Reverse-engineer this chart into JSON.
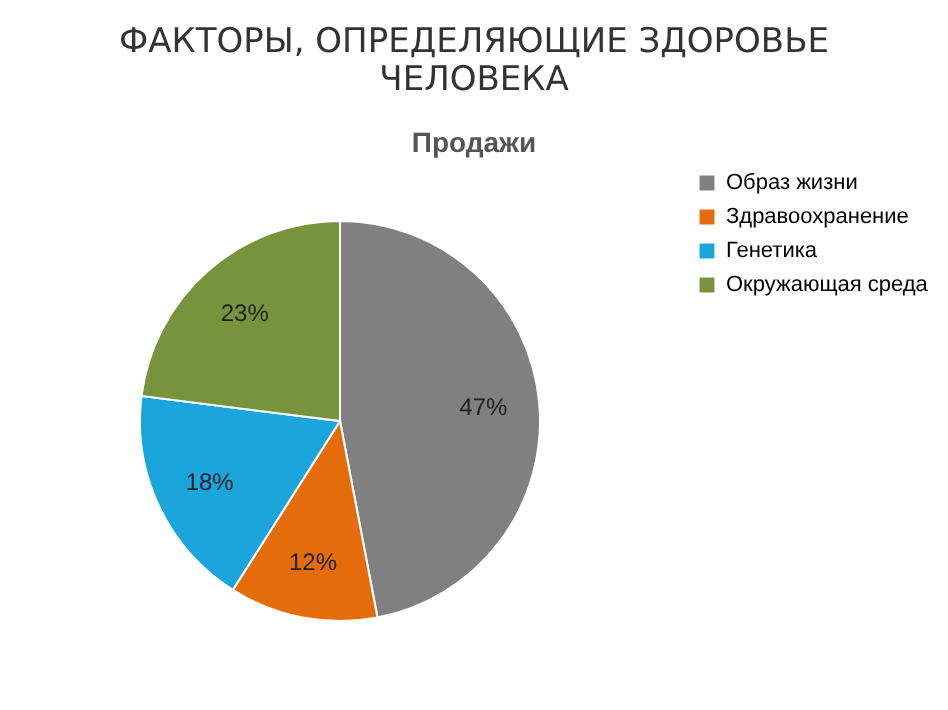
{
  "chart_data": {
    "type": "pie",
    "title": "ФАКТОРЫ, ОПРЕДЕЛЯЮЩИЕ ЗДОРОВЬЕ ЧЕЛОВЕКА",
    "subtitle": "Продажи",
    "categories": [
      "Образ жизни",
      "Здравоохранение",
      "Генетика",
      "Окружающая среда"
    ],
    "values": [
      47,
      12,
      18,
      23
    ],
    "colors": [
      "#808080",
      "#e46c0a",
      "#1aa6dc",
      "#77933c"
    ],
    "value_labels": [
      "47%",
      "12%",
      "18%",
      "23%"
    ],
    "legend": "right"
  }
}
